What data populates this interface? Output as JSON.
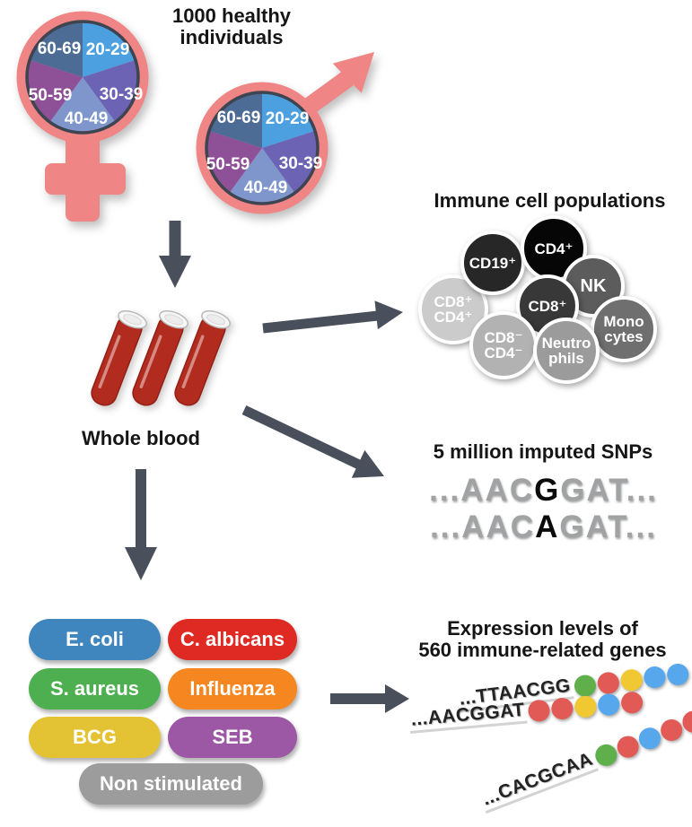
{
  "demographics": {
    "title": "1000 healthy individuals",
    "age_groups": [
      "20-29",
      "30-39",
      "40-49",
      "50-59",
      "60-69"
    ],
    "slice_colors": [
      "#4CA0E0",
      "#6C63B5",
      "#7E96CB",
      "#8E5096",
      "#4C6C96"
    ]
  },
  "whole_blood": {
    "label": "Whole blood"
  },
  "immune_cells": {
    "title": "Immune cell populations",
    "cells": [
      {
        "label": "CD8⁺\nCD4⁺",
        "bg": "#CBCBCB",
        "fg": "#FFFFFF"
      },
      {
        "label": "CD19⁺",
        "bg": "#272727",
        "fg": "#FFFFFF"
      },
      {
        "label": "CD4⁺",
        "bg": "#060606",
        "fg": "#FFFFFF"
      },
      {
        "label": "NK",
        "bg": "#5C5C5C",
        "fg": "#FFFFFF"
      },
      {
        "label": "CD8⁺",
        "bg": "#383838",
        "fg": "#FFFFFF"
      },
      {
        "label": "Mono\ncytes",
        "bg": "#6F6F6F",
        "fg": "#FFFFFF"
      },
      {
        "label": "CD8⁻\nCD4⁻",
        "bg": "#B2B2B2",
        "fg": "#FFFFFF"
      },
      {
        "label": "Neutro\nphils",
        "bg": "#9B9B9B",
        "fg": "#FFFFFF"
      }
    ]
  },
  "snps": {
    "title": "5 million imputed SNPs",
    "lines": [
      {
        "pre": "...AAC",
        "variant": "G",
        "post": "GAT..."
      },
      {
        "pre": "...AAC",
        "variant": "A",
        "post": "GAT..."
      }
    ]
  },
  "stimuli": {
    "buttons": [
      {
        "label": "E. coli",
        "color": "#3E86BD"
      },
      {
        "label": "C. albicans",
        "color": "#DF2A23"
      },
      {
        "label": "S. aureus",
        "color": "#4EAF51"
      },
      {
        "label": "Influenza",
        "color": "#F6861F"
      },
      {
        "label": "BCG",
        "color": "#E3C333"
      },
      {
        "label": "SEB",
        "color": "#9D58A5"
      },
      {
        "label": "Non stimulated",
        "color": "#9C9C9C"
      }
    ]
  },
  "expression": {
    "title_line1": "Expression levels of",
    "title_line2": "560 immune-related genes",
    "dot_palette": {
      "green": "#5FB04A",
      "red": "#E15A55",
      "yellow": "#EFC832",
      "blue": "#57A7ED"
    },
    "rows": [
      {
        "sequence": "...TTAACGG",
        "dots": [
          "green",
          "red",
          "yellow",
          "blue",
          "blue"
        ]
      },
      {
        "sequence": "...AACGGAT",
        "dots": [
          "red",
          "red",
          "yellow",
          "blue",
          "red"
        ]
      },
      {
        "sequence": "...CACGCAA",
        "dots": [
          "green",
          "red",
          "blue",
          "red",
          "red"
        ]
      }
    ]
  },
  "colors": {
    "pink": "#F08585",
    "pie_outline": "#3E4450",
    "arrow": "#49505B",
    "blood": "#B22B1F",
    "blood_edge": "#941F15"
  }
}
